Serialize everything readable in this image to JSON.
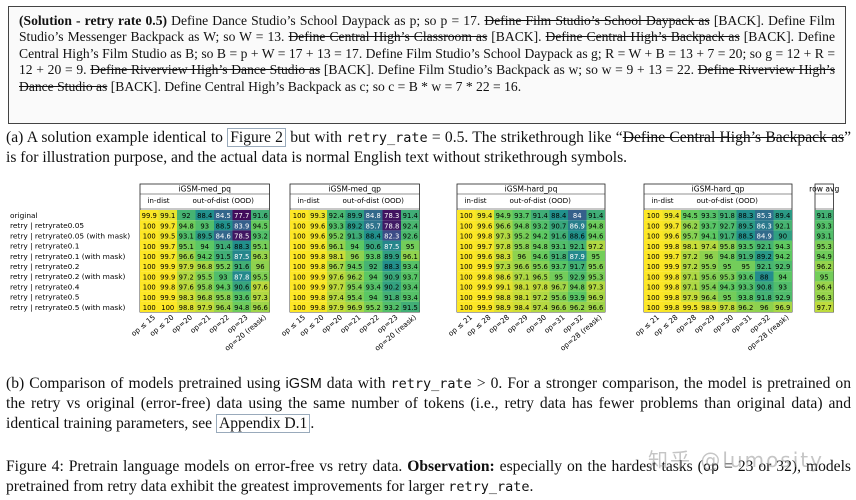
{
  "solution_box": {
    "label": "(Solution - retry rate 0.5)",
    "segments": [
      {
        "t": " Define Dance Studio’s School Daypack as p; so p = 17. ",
        "s": false
      },
      {
        "t": "Define Film Studio’s School Daypack as",
        "s": true
      },
      {
        "t": " [BACK]. Define Film Studio’s Messenger Backpack as W; so W = 13. ",
        "s": false
      },
      {
        "t": "Define Central High’s Classroom as",
        "s": true
      },
      {
        "t": " [BACK]. ",
        "s": false
      },
      {
        "t": "Define Central High’s Backpack as",
        "s": true
      },
      {
        "t": " [BACK]. Define Central High’s Film Studio as B; so B = p + W = 17 + 13 = 17. Define Film Studio’s School Daypack as g; R = W + B = 13 + 7 = 20; so g = 12 + R = 12 + 20 = 9. ",
        "s": false
      },
      {
        "t": "Define Riverview High’s Dance Studio as",
        "s": true
      },
      {
        "t": " [BACK]. Define Film Studio’s Backpack as w; so w = 9 + 13 = 22. ",
        "s": false
      },
      {
        "t": "Define Riverview High’s Dance Studio as",
        "s": true
      },
      {
        "t": " [BACK]. Define Central High’s Backpack as c; so c = B * w = 7 * 22 = 16.",
        "s": false
      }
    ]
  },
  "caption_a": {
    "p1": "(a) A solution example identical to ",
    "ref": "Figure 2",
    "p2": " but with ",
    "code": "retry_rate",
    "p3": " = 0.5. The strikethrough like “",
    "struck": "Define Central High’s Backpack as",
    "p4": "” is for illustration purpose, and the actual data is normal English text without strikethrough symbols."
  },
  "chart_data": {
    "type": "heatmap",
    "row_labels": [
      "original",
      "retry | retryrate0.05",
      "retry | retryrate0.05 (with mask)",
      "retry | retryrate0.1",
      "retry | retryrate0.1 (with mask)",
      "retry | retryrate0.2",
      "retry | retryrate0.2 (with mask)",
      "retry | retryrate0.4",
      "retry | retryrate0.5",
      "retry | retryrate0.5 (with mask)"
    ],
    "groups": [
      {
        "title": "iGSM-med_pq",
        "sub": [
          {
            "label": "in-dist",
            "span": 2
          },
          {
            "label": "out-of-dist (OOD)",
            "span": 5
          }
        ]
      },
      {
        "title": "iGSM-med_qp",
        "sub": [
          {
            "label": "in-dist",
            "span": 2
          },
          {
            "label": "out-of-dist (OOD)",
            "span": 5
          }
        ]
      },
      {
        "title": "iGSM-hard_pq",
        "sub": [
          {
            "label": "in-dist",
            "span": 2
          },
          {
            "label": "out-of-dist (OOD)",
            "span": 5
          }
        ]
      },
      {
        "title": "iGSM-hard_qp",
        "sub": [
          {
            "label": "in-dist",
            "span": 2
          },
          {
            "label": "out-of-dist (OOD)",
            "span": 5
          }
        ]
      },
      {
        "title": "row avg",
        "sub": [
          {
            "label": "",
            "span": 1
          }
        ]
      }
    ],
    "col_labels": [
      [
        "op ≤ 15",
        "op ≤ 20",
        "op=20",
        "op=21",
        "op=22",
        "op=23",
        "op=20 (reask)"
      ],
      [
        "op ≤ 15",
        "op ≤ 20",
        "op=20",
        "op=21",
        "op=22",
        "op=23",
        "op=20 (reask)"
      ],
      [
        "op ≤ 21",
        "op ≤ 28",
        "op=28",
        "op=29",
        "op=30",
        "op=31",
        "op=32",
        "op=28 (reask)"
      ],
      [
        "op ≤ 21",
        "op ≤ 28",
        "op=28",
        "op=29",
        "op=30",
        "op=31",
        "op=32",
        "op=28 (reask)"
      ],
      [
        ""
      ]
    ],
    "blocks": [
      [
        [
          99.9,
          99.1,
          92.0,
          88.4,
          84.5,
          77.7,
          91.6
        ],
        [
          100,
          99.7,
          94.8,
          93.0,
          88.5,
          83.9,
          94.5
        ],
        [
          100,
          99.5,
          93.1,
          89.5,
          84.6,
          78.5,
          93.2
        ],
        [
          100,
          99.7,
          95.1,
          94.0,
          91.4,
          88.3,
          95.1
        ],
        [
          100,
          99.7,
          96.6,
          94.2,
          91.5,
          87.5,
          96.3
        ],
        [
          100,
          99.9,
          97.9,
          96.8,
          95.2,
          91.6,
          96.0
        ],
        [
          100,
          99.9,
          97.2,
          95.5,
          93.0,
          87.8,
          95.5
        ],
        [
          100,
          99.8,
          97.6,
          95.8,
          94.3,
          90.6,
          97.6
        ],
        [
          100,
          99.9,
          98.3,
          96.8,
          95.8,
          93.6,
          97.3
        ],
        [
          100,
          100,
          98.8,
          97.9,
          96.4,
          94.8,
          96.6
        ]
      ],
      [
        [
          100,
          99.3,
          92.4,
          89.9,
          84.8,
          78.3,
          91.4
        ],
        [
          100,
          99.6,
          93.3,
          89.2,
          85.7,
          78.8,
          92.4
        ],
        [
          100,
          99.6,
          95.2,
          91.3,
          88.4,
          82.3,
          92.6
        ],
        [
          100,
          99.6,
          96.1,
          94.0,
          90.6,
          87.5,
          95.0
        ],
        [
          100,
          99.8,
          98.1,
          96.0,
          93.8,
          89.9,
          96.1
        ],
        [
          100,
          99.8,
          96.7,
          94.5,
          92.0,
          88.3,
          93.4
        ],
        [
          100,
          99.9,
          97.6,
          96.2,
          94.0,
          90.9,
          93.7
        ],
        [
          100,
          99.9,
          97.7,
          95.4,
          93.4,
          90.2,
          93.4
        ],
        [
          100,
          99.8,
          97.4,
          95.4,
          94.0,
          91.8,
          93.4
        ],
        [
          100,
          99.8,
          97.9,
          96.9,
          95.2,
          93.2,
          91.5
        ]
      ],
      [
        [
          100,
          99.4,
          94.9,
          93.7,
          91.4,
          88.4,
          84.0,
          91.4
        ],
        [
          100,
          99.6,
          96.6,
          94.8,
          93.2,
          90.7,
          86.9,
          94.8
        ],
        [
          100,
          99.8,
          97.3,
          95.2,
          94.2,
          91.6,
          88.6,
          94.6
        ],
        [
          100,
          99.7,
          97.8,
          95.8,
          94.8,
          93.1,
          92.1,
          97.2
        ],
        [
          100,
          99.6,
          98.3,
          96.0,
          94.6,
          91.8,
          87.9,
          95.0
        ],
        [
          100,
          99.9,
          97.3,
          96.6,
          95.6,
          93.7,
          91.7,
          95.6
        ],
        [
          100,
          99.8,
          98.6,
          97.1,
          96.5,
          95.0,
          92.9,
          95.3
        ],
        [
          100,
          99.9,
          99.1,
          98.1,
          97.8,
          96.7,
          94.8,
          97.3
        ],
        [
          100,
          99.9,
          98.8,
          98.1,
          97.2,
          95.6,
          93.9,
          96.9
        ],
        [
          100,
          99.9,
          98.9,
          98.4,
          97.4,
          96.6,
          96.2,
          96.6
        ]
      ],
      [
        [
          100,
          99.4,
          94.5,
          93.3,
          91.8,
          88.3,
          85.3,
          89.4
        ],
        [
          100,
          99.7,
          96.2,
          93.7,
          92.7,
          89.5,
          86.3,
          92.1
        ],
        [
          100,
          99.6,
          95.7,
          94.1,
          91.7,
          88.5,
          84.9,
          90.0
        ],
        [
          100,
          99.8,
          98.1,
          97.4,
          95.8,
          93.5,
          92.1,
          94.3
        ],
        [
          100,
          99.7,
          97.2,
          96.0,
          94.8,
          91.9,
          89.2,
          94.2
        ],
        [
          100,
          99.9,
          97.2,
          95.9,
          95.0,
          95.0,
          92.1,
          92.9
        ],
        [
          100,
          99.8,
          97.1,
          95.6,
          95.3,
          93.6,
          88.0,
          94.0
        ],
        [
          100,
          99.8,
          97.1,
          95.4,
          94.3,
          93.3,
          90.8,
          93.0
        ],
        [
          100,
          99.8,
          97.9,
          96.4,
          95.0,
          93.8,
          91.8,
          92.9
        ],
        [
          100,
          99.8,
          99.5,
          98.9,
          97.8,
          96.2,
          96.0,
          96.9
        ]
      ],
      [
        [
          91.8
        ],
        [
          93.3
        ],
        [
          93.1
        ],
        [
          95.3
        ],
        [
          94.9
        ],
        [
          96.2
        ],
        [
          95.0
        ],
        [
          96.4
        ],
        [
          96.3
        ],
        [
          97.7
        ]
      ]
    ]
  },
  "caption_b": {
    "p1": "(b) Comparison of models pretrained using ",
    "sf1": "iGSM",
    "p2": " data with ",
    "code": "retry_rate",
    "p3": " > 0. For a stronger comparison, the model is pretrained on the retry vs original (error-free) data using the same number of tokens (i.e., retry data has fewer problems than original data) and identical training parameters, see ",
    "ref": "Appendix D.1",
    "p4": "."
  },
  "figure_caption": {
    "p1": "Figure 4: Pretrain language models on error-free vs retry data. ",
    "bold": "Observation:",
    "p2": " especially on the hardest tasks (",
    "code1": "op",
    "p3": " = 23 or 32), models pretrained from retry data exhibit the greatest improvements for larger ",
    "code2": "retry_rate",
    "p4": "."
  },
  "watermark": "知乎 @lumosity"
}
